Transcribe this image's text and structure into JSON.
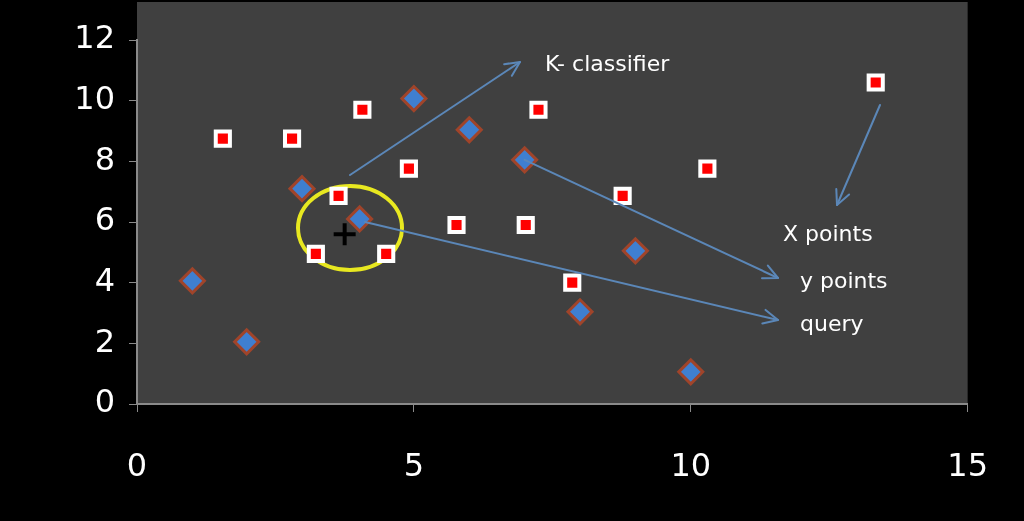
{
  "chart_data": {
    "type": "scatter",
    "xlim": [
      0,
      15
    ],
    "ylim": [
      0,
      12
    ],
    "xticks": [
      0,
      5,
      10,
      15
    ],
    "yticks": [
      0,
      2,
      4,
      6,
      8,
      10,
      12
    ],
    "grid": false,
    "series": [
      {
        "color": "#ff0000",
        "marker": "square",
        "x": [
          1.55,
          2.8,
          4.07,
          3.64,
          4.91,
          3.23,
          4.5,
          5.77,
          7.02,
          7.25,
          7.86,
          8.77,
          10.3,
          13.34
        ],
        "values": [
          8.75,
          8.75,
          9.7,
          6.86,
          7.76,
          4.95,
          4.95,
          5.9,
          5.9,
          9.7,
          4.0,
          6.86,
          7.76,
          10.6
        ]
      },
      {
        "color": "#3f7fd0",
        "marker": "diamond",
        "x": [
          1.0,
          1.98,
          2.98,
          4.02,
          5.0,
          6.0,
          7.0,
          8.0,
          9.0,
          10.0
        ],
        "values": [
          4.06,
          2.05,
          7.1,
          6.1,
          10.07,
          9.04,
          8.05,
          3.04,
          5.05,
          1.06
        ]
      },
      {
        "color": "#000000",
        "marker": "cross",
        "x": [
          3.75
        ],
        "values": [
          5.6
        ]
      }
    ],
    "annotations": [
      "K- classifier",
      "X points",
      {
        "text": "y points",
        "x": 7.0,
        "y": 8.05
      },
      "query"
    ]
  }
}
